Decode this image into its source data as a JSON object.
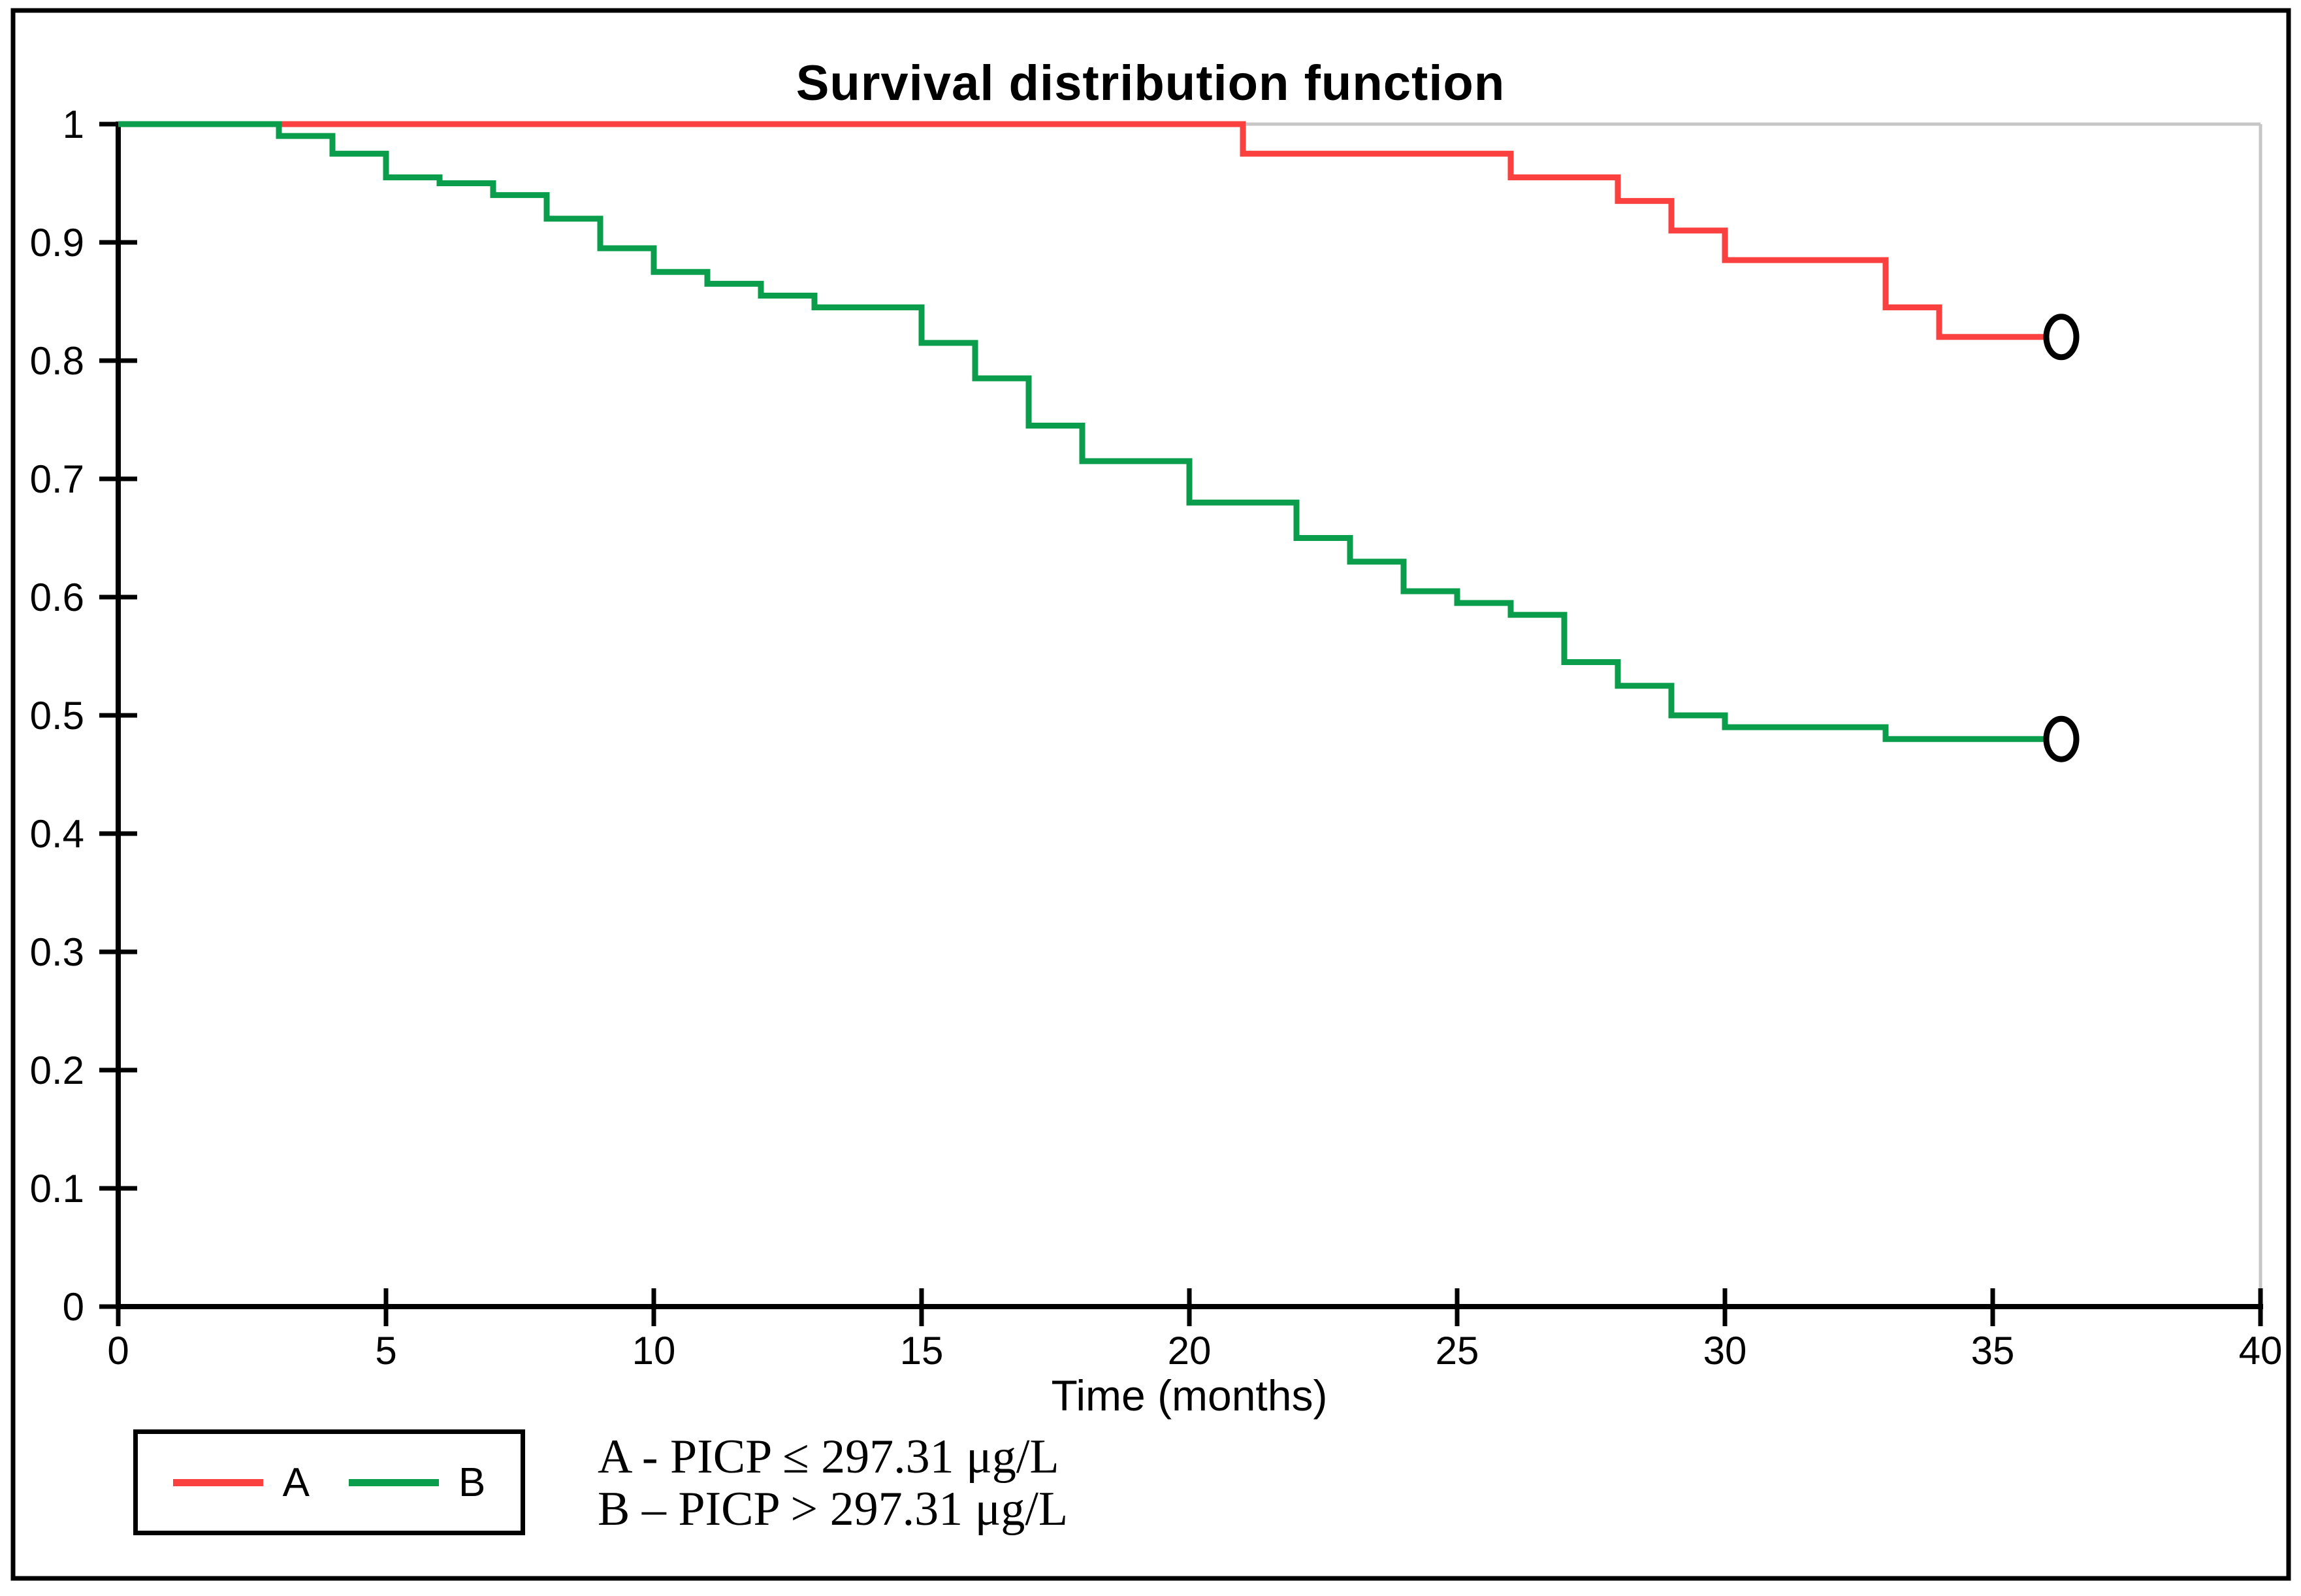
{
  "figure": {
    "background": "#ffffff",
    "frame_color": "#000000"
  },
  "chart_data": {
    "type": "line",
    "subtype": "kaplan-meier-step",
    "title": "Survival distribution function",
    "xlabel": "Time (months)",
    "ylabel": "",
    "xlim": [
      0,
      40
    ],
    "ylim": [
      0,
      1
    ],
    "x_ticks": [
      0,
      5,
      10,
      15,
      20,
      25,
      30,
      35,
      40
    ],
    "x_tick_labels": [
      "0",
      "5",
      "10",
      "15",
      "20",
      "25",
      "30",
      "35",
      "40"
    ],
    "y_ticks": [
      0,
      0.1,
      0.2,
      0.3,
      0.4,
      0.5,
      0.6,
      0.7,
      0.8,
      0.9,
      1
    ],
    "y_tick_labels": [
      "0",
      "0.1",
      "0.2",
      "0.3",
      "0.4",
      "0.5",
      "0.6",
      "0.7",
      "0.8",
      "0.9",
      "1"
    ],
    "grid": "top-and-right-border-only",
    "gridline_color": "#c6c6c6",
    "axis_color": "#000000",
    "legend_position": "bottom-left",
    "series": [
      {
        "name": "A",
        "color": "#fb4040",
        "points": [
          [
            0,
            1.0
          ],
          [
            21,
            0.975
          ],
          [
            26,
            0.955
          ],
          [
            28,
            0.935
          ],
          [
            29,
            0.91
          ],
          [
            30,
            0.885
          ],
          [
            33,
            0.845
          ],
          [
            34,
            0.82
          ],
          [
            36,
            0.82
          ]
        ],
        "censor_marker": {
          "x": 36,
          "y": 0.82
        }
      },
      {
        "name": "B",
        "color": "#0a9e4c",
        "points": [
          [
            0,
            1.0
          ],
          [
            3,
            0.99
          ],
          [
            4,
            0.975
          ],
          [
            5,
            0.955
          ],
          [
            6,
            0.95
          ],
          [
            7,
            0.94
          ],
          [
            8,
            0.92
          ],
          [
            9,
            0.895
          ],
          [
            10,
            0.875
          ],
          [
            11,
            0.865
          ],
          [
            12,
            0.855
          ],
          [
            13,
            0.845
          ],
          [
            15,
            0.815
          ],
          [
            16,
            0.785
          ],
          [
            17,
            0.745
          ],
          [
            18,
            0.715
          ],
          [
            20,
            0.68
          ],
          [
            22,
            0.65
          ],
          [
            23,
            0.63
          ],
          [
            24,
            0.605
          ],
          [
            25,
            0.595
          ],
          [
            26,
            0.585
          ],
          [
            27,
            0.545
          ],
          [
            28,
            0.525
          ],
          [
            29,
            0.5
          ],
          [
            30,
            0.49
          ],
          [
            33,
            0.48
          ],
          [
            36,
            0.48
          ]
        ],
        "censor_marker": {
          "x": 36,
          "y": 0.48
        }
      }
    ],
    "annotations": [
      "A - PICP ≤ 297.31 μg/L",
      "B – PICP > 297.31 μg/L"
    ]
  },
  "legend": {
    "entries": [
      {
        "label": "A",
        "color": "#fb4040"
      },
      {
        "label": "B",
        "color": "#0a9e4c"
      }
    ]
  }
}
